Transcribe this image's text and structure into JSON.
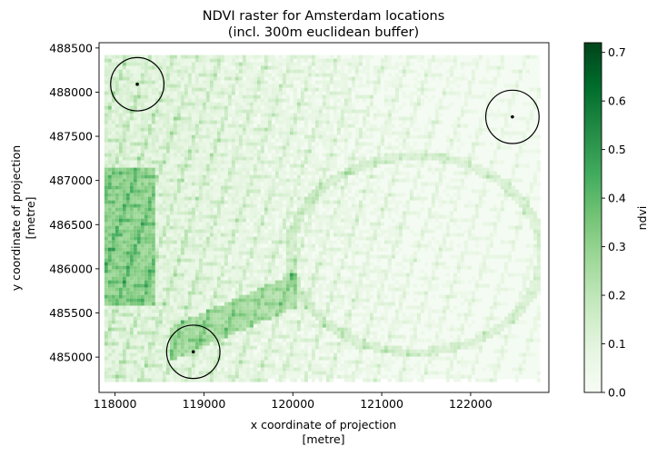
{
  "chart_data": {
    "type": "heatmap",
    "title_line1": "NDVI raster for Amsterdam locations",
    "title_line2": "(incl. 300m euclidean buffer)",
    "xlabel_line1": "x coordinate of projection",
    "xlabel_line2": "[metre]",
    "ylabel_line1": "y coordinate of projection",
    "ylabel_line2": "[metre]",
    "xlim": [
      117820,
      122880
    ],
    "ylim": [
      484600,
      488560
    ],
    "xticks": [
      118000,
      119000,
      120000,
      121000,
      122000
    ],
    "yticks": [
      485000,
      485500,
      486000,
      486500,
      487000,
      487500,
      488000,
      488500
    ],
    "raster_extent": {
      "x": [
        117880,
        122780
      ],
      "y": [
        484750,
        488420
      ]
    },
    "colorbar": {
      "label": "ndvi",
      "colormap": "Greens",
      "min": 0.0,
      "max": 0.72,
      "ticks": [
        0.0,
        0.1,
        0.2,
        0.3,
        0.4,
        0.5,
        0.6,
        0.7
      ],
      "colors": [
        "#f7fcf5",
        "#e5f5e0",
        "#c7e9c0",
        "#a1d99b",
        "#74c476",
        "#41ab5d",
        "#238b45",
        "#006d2c",
        "#00441b"
      ]
    },
    "locations": [
      {
        "x": 118250,
        "y": 488090,
        "buffer_m": 300
      },
      {
        "x": 122470,
        "y": 487720,
        "buffer_m": 300
      },
      {
        "x": 118880,
        "y": 485060,
        "buffer_m": 300
      }
    ],
    "grid": false
  }
}
